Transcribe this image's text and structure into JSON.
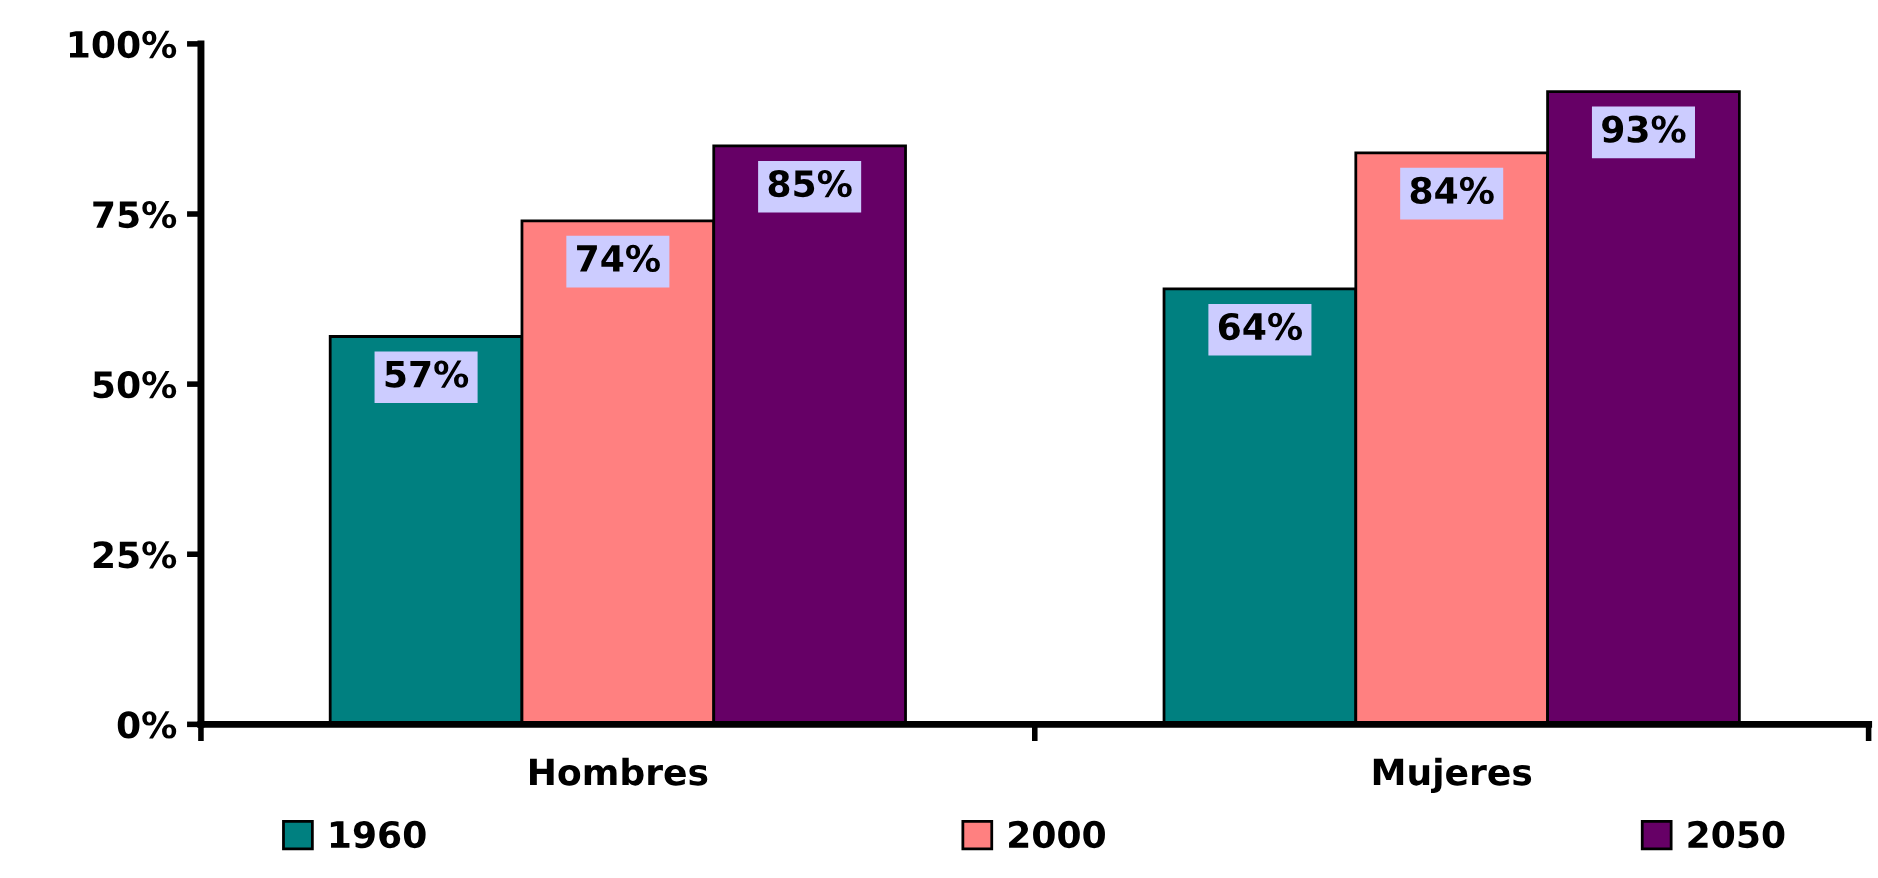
{
  "chart_data": {
    "type": "bar",
    "categories": [
      "Hombres",
      "Mujeres"
    ],
    "series": [
      {
        "name": "1960",
        "color": "#008080",
        "values": [
          57,
          64
        ],
        "value_labels": [
          "57%",
          "64%"
        ]
      },
      {
        "name": "2000",
        "color": "#ff8080",
        "values": [
          74,
          84
        ],
        "value_labels": [
          "74%",
          "84%"
        ]
      },
      {
        "name": "2050",
        "color": "#660066",
        "values": [
          85,
          93
        ],
        "value_labels": [
          "85%",
          "93%"
        ]
      }
    ],
    "ylim": [
      0,
      100
    ],
    "yticks": [
      {
        "value": 0,
        "label": "0%"
      },
      {
        "value": 25,
        "label": "25%"
      },
      {
        "value": 50,
        "label": "50%"
      },
      {
        "value": 75,
        "label": "75%"
      },
      {
        "value": 100,
        "label": "100%"
      }
    ],
    "grid": false,
    "legend": "bottom"
  }
}
